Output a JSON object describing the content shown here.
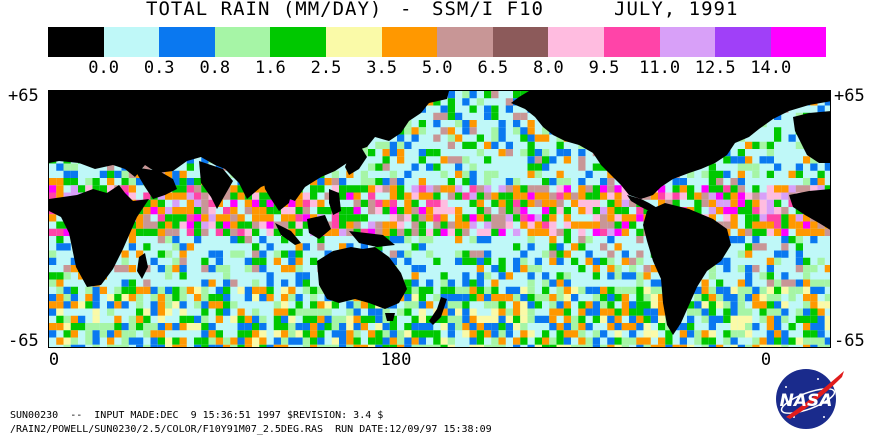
{
  "header": {
    "title_main": "TOTAL RAIN (MM/DAY)",
    "title_dash": "-",
    "title_instrument": "SSM/I F10",
    "title_date": "JULY, 1991"
  },
  "legend": {
    "colors": [
      "#000000",
      "#bff8f8",
      "#0a78f0",
      "#a6f5a6",
      "#00c800",
      "#fafaa8",
      "#ff9800",
      "#c89696",
      "#8c5a5a",
      "#ffbce0",
      "#ff44a8",
      "#d8a0f8",
      "#a040f8",
      "#ff00ff"
    ],
    "labels": [
      "0.0",
      "0.3",
      "0.8",
      "1.6",
      "2.5",
      "3.5",
      "5.0",
      "6.5",
      "8.0",
      "9.5",
      "11.0",
      "12.5",
      "14.0"
    ]
  },
  "axes": {
    "lat_top": "+65",
    "lat_bottom": "-65",
    "lon_left": "0",
    "lon_center": "180",
    "lon_right": "0"
  },
  "footer": {
    "line1": "SUN00230  --  INPUT MADE:DEC  9 15:36:51 1997 $REVISION: 3.4 $",
    "line2": "/RAIN2/POWELL/SUN0230/2.5/COLOR/F10Y91M07_2.5DEG.RAS  RUN DATE:12/09/97 15:38:09",
    "logo_text": "NASA"
  }
}
